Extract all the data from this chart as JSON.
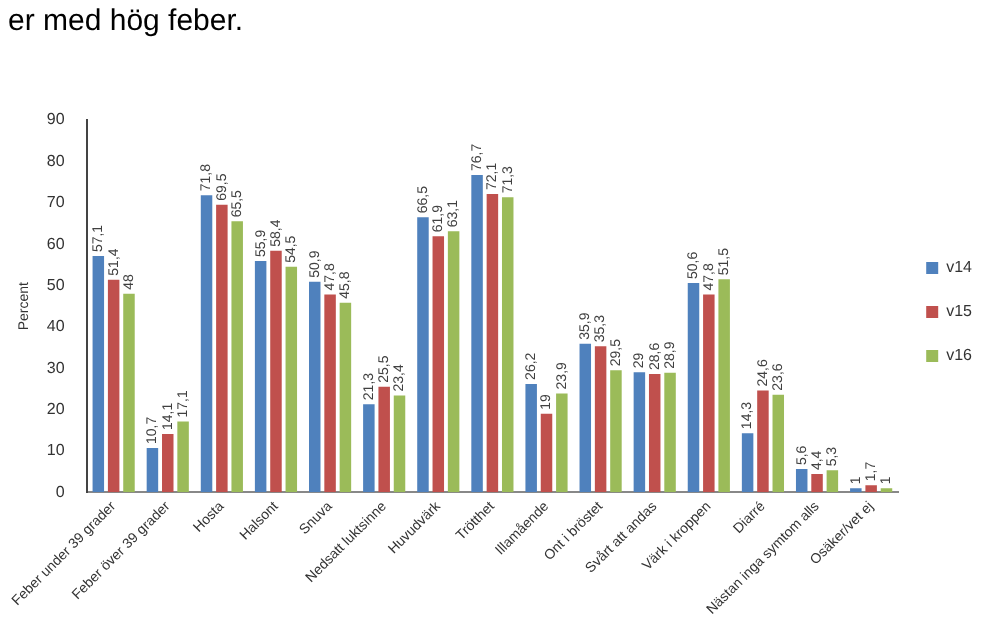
{
  "chart_data": {
    "type": "bar",
    "title": "er med hög feber.",
    "ylabel": "Percent",
    "categories": [
      "Feber under 39 grader",
      "Feber över 39 grader",
      "Hosta",
      "Halsont",
      "Snuva",
      "Nedsatt luktsinne",
      "Huvudvärk",
      "Trötthet",
      "Illamående",
      "Ont i bröstet",
      "Svårt att andas",
      "Värk i kroppen",
      "Diarré",
      "Nästan inga symtom alls",
      "Osäker/vet ej"
    ],
    "series": [
      {
        "name": "v14",
        "color": "#4f81bd",
        "values": [
          57.1,
          10.7,
          71.8,
          55.9,
          50.9,
          21.3,
          66.5,
          76.7,
          26.2,
          35.9,
          29.0,
          50.6,
          14.3,
          5.6,
          1.0
        ],
        "value_labels": [
          "57,1",
          "10,7",
          "71,8",
          "55,9",
          "50,9",
          "21,3",
          "66,5",
          "76,7",
          "26,2",
          "35,9",
          "29",
          "50,6",
          "14,3",
          "5,6",
          "1"
        ]
      },
      {
        "name": "v15",
        "color": "#c0504d",
        "values": [
          51.4,
          14.1,
          69.5,
          58.4,
          47.8,
          25.5,
          61.9,
          72.1,
          19.0,
          35.3,
          28.6,
          47.8,
          24.6,
          4.4,
          1.7
        ],
        "value_labels": [
          "51,4",
          "14,1",
          "69,5",
          "58,4",
          "47,8",
          "25,5",
          "61,9",
          "72,1",
          "19",
          "35,3",
          "28,6",
          "47,8",
          "24,6",
          "4,4",
          "1,7"
        ]
      },
      {
        "name": "v16",
        "color": "#9bbb59",
        "values": [
          48,
          17.1,
          65.5,
          54.5,
          45.8,
          23.4,
          63.1,
          71.3,
          23.9,
          29.5,
          28.9,
          51.5,
          23.6,
          5.3,
          1.0
        ],
        "value_labels": [
          "48",
          "17,1",
          "65,5",
          "54,5",
          "45,8",
          "23,4",
          "63,1",
          "71,3",
          "23,9",
          "29,5",
          "28,9",
          "51,5",
          "23,6",
          "5,3",
          "1"
        ]
      }
    ],
    "ylim": [
      0,
      90
    ],
    "yticks": [
      0,
      10,
      20,
      30,
      40,
      50,
      60,
      70,
      80,
      90
    ],
    "grid": false,
    "legend": "right"
  }
}
